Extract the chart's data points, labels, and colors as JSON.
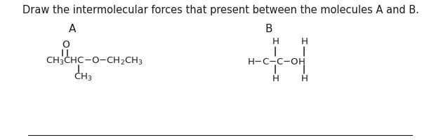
{
  "title": "Draw the intermolecular forces that present between the molecules A and B.",
  "title_fontsize": 10.5,
  "bg_color": "#ffffff",
  "text_color": "#1a1a1a",
  "label_A": "A",
  "label_B": "B",
  "font_family": "DejaVu Sans",
  "line_color": "#1a1a1a"
}
